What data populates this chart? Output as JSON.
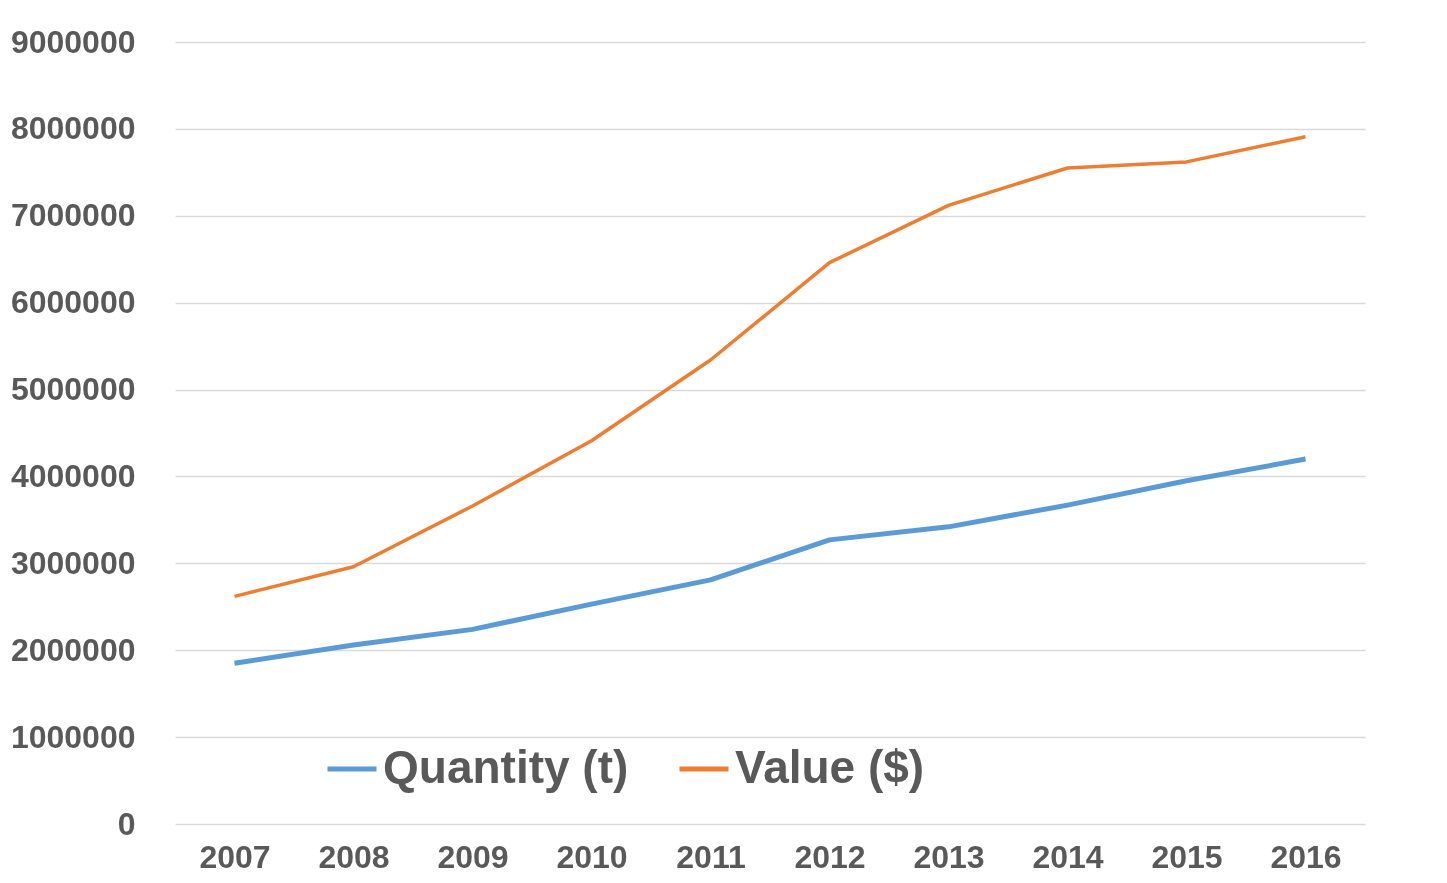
{
  "chart_data": {
    "type": "line",
    "categories": [
      "2007",
      "2008",
      "2009",
      "2010",
      "2011",
      "2012",
      "2013",
      "2014",
      "2015",
      "2016"
    ],
    "series": [
      {
        "name": "Quantity (t)",
        "color": "#5b9bd5",
        "values": [
          1850000,
          2060000,
          2240000,
          2530000,
          2810000,
          3270000,
          3420000,
          3670000,
          3950000,
          4200000
        ]
      },
      {
        "name": "Value ($)",
        "color": "#ed7d31",
        "values": [
          2620000,
          2960000,
          3660000,
          4410000,
          5340000,
          6460000,
          7120000,
          7550000,
          7620000,
          7910000
        ]
      }
    ],
    "ylim": [
      0,
      9000000
    ],
    "yticks": [
      0,
      1000000,
      2000000,
      3000000,
      4000000,
      5000000,
      6000000,
      7000000,
      8000000,
      9000000
    ],
    "grid": "y",
    "legend": "bottom",
    "marker": "none",
    "line_style": "solid"
  }
}
